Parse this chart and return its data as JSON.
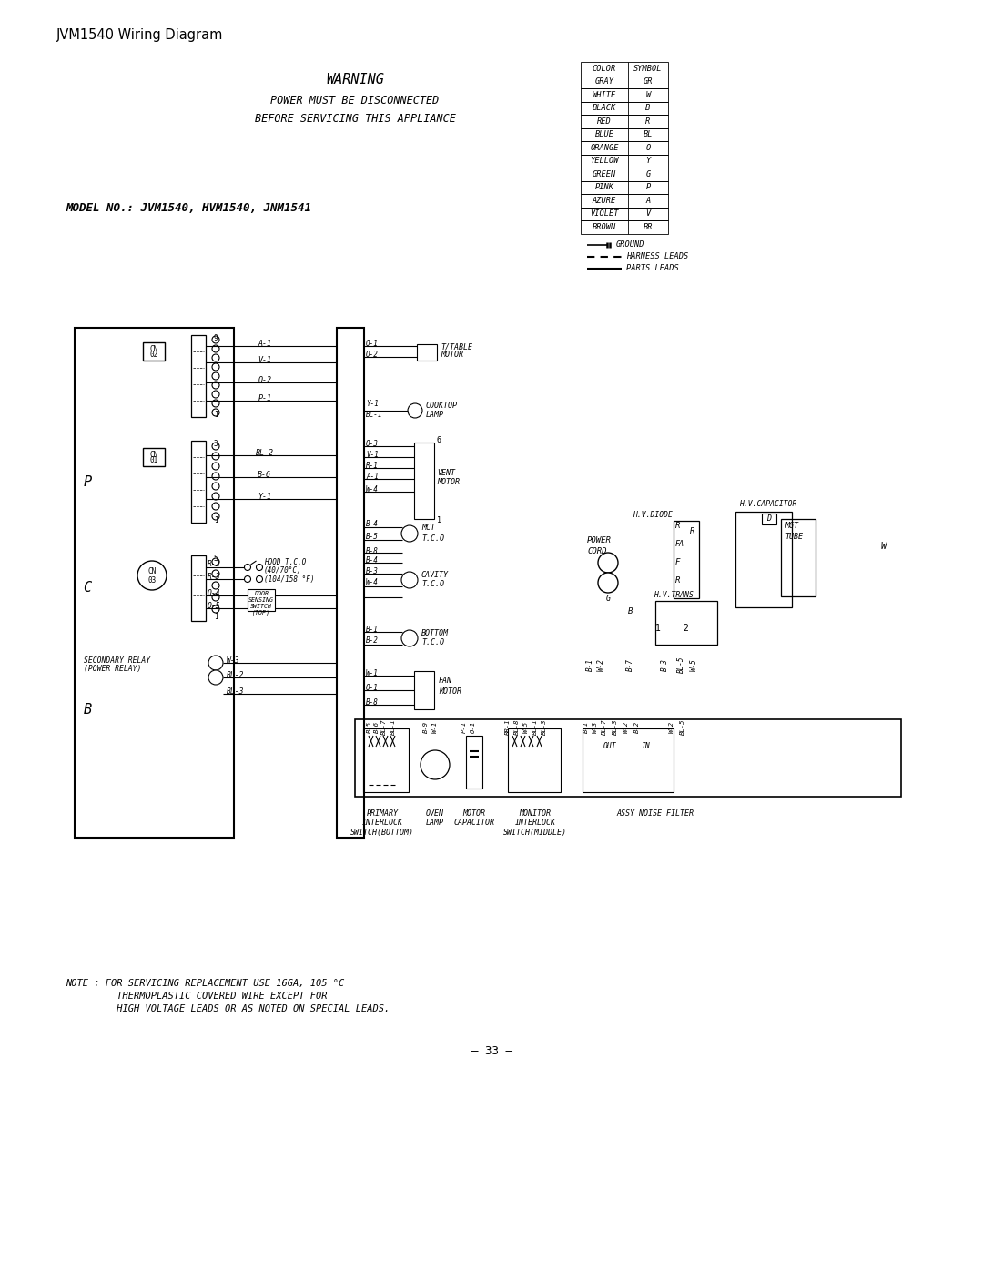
{
  "title": "JVM1540 Wiring Diagram",
  "warning_line1": "WARNING",
  "warning_line2": "POWER MUST BE DISCONNECTED",
  "warning_line3": "BEFORE SERVICING THIS APPLIANCE",
  "model_line": "MODEL NO.: JVM1540, HVM1540, JNM1541",
  "color_table": [
    [
      "COLOR",
      "SYMBOL"
    ],
    [
      "GRAY",
      "GR"
    ],
    [
      "WHITE",
      "W"
    ],
    [
      "BLACK",
      "B"
    ],
    [
      "RED",
      "R"
    ],
    [
      "BLUE",
      "BL"
    ],
    [
      "ORANGE",
      "O"
    ],
    [
      "YELLOW",
      "Y"
    ],
    [
      "GREEN",
      "G"
    ],
    [
      "PINK",
      "P"
    ],
    [
      "AZURE",
      "A"
    ],
    [
      "VIOLET",
      "V"
    ],
    [
      "BROWN",
      "BR"
    ]
  ],
  "note_line1": "NOTE : FOR SERVICING REPLACEMENT USE 16GA, 105 °C",
  "note_line2": "         THERMOPLASTIC COVERED WIRE EXCEPT FOR",
  "note_line3": "         HIGH VOLTAGE LEADS OR AS NOTED ON SPECIAL LEADS.",
  "page_number": "– 33 –",
  "bg_color": "#ffffff"
}
